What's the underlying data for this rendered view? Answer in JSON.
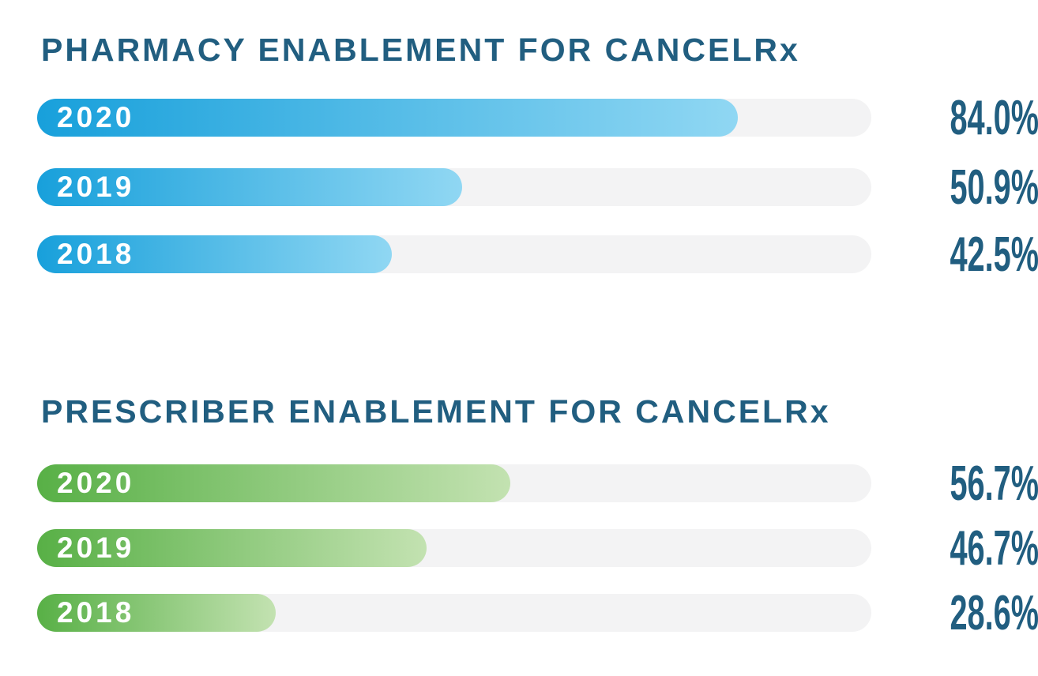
{
  "page": {
    "background": "#ffffff"
  },
  "colors": {
    "ink": "#215E80",
    "track": "#F3F3F4",
    "blue_bar_start": "#18A0DB",
    "blue_bar_end": "#90D7F3",
    "green_bar_start": "#58B046",
    "green_bar_end": "#C3E2B1"
  },
  "chart_data": [
    {
      "type": "bar",
      "orientation": "horizontal",
      "title": "PHARMACY ENABLEMENT FOR CANCELRx",
      "categories": [
        "2020",
        "2019",
        "2018"
      ],
      "values": [
        84.0,
        50.9,
        42.5
      ],
      "value_labels": [
        "84.0%",
        "50.9%",
        "42.5%"
      ],
      "xlim": [
        0,
        100
      ],
      "grid": false,
      "legend": false,
      "bar_gradient": [
        "#18A0DB",
        "#90D7F3"
      ]
    },
    {
      "type": "bar",
      "orientation": "horizontal",
      "title": "PRESCRIBER ENABLEMENT FOR CANCELRx",
      "categories": [
        "2020",
        "2019",
        "2018"
      ],
      "values": [
        56.7,
        46.7,
        28.6
      ],
      "value_labels": [
        "56.7%",
        "46.7%",
        "28.6%"
      ],
      "xlim": [
        0,
        100
      ],
      "grid": false,
      "legend": false,
      "bar_gradient": [
        "#58B046",
        "#C3E2B1"
      ]
    }
  ]
}
